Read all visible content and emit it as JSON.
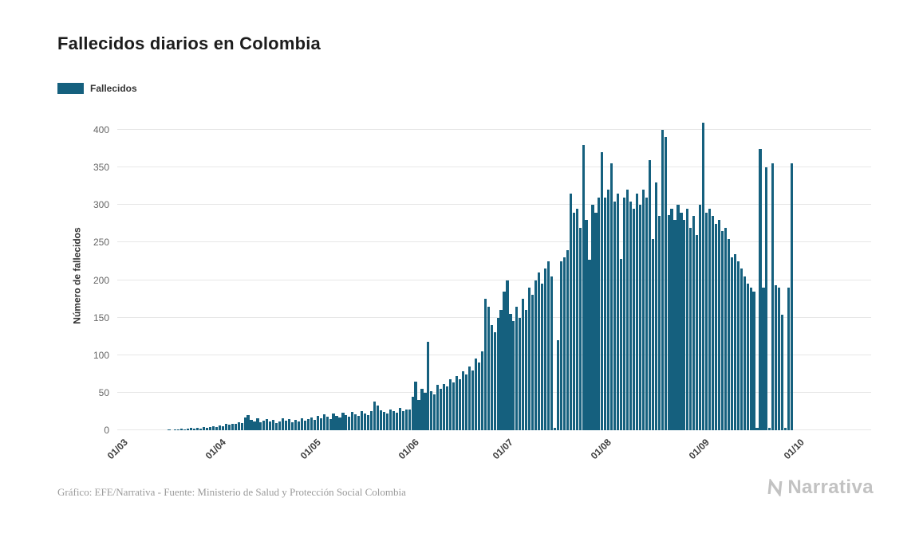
{
  "title": "Fallecidos diarios en Colombia",
  "legend": {
    "label": "Fallecidos",
    "color": "#15607e"
  },
  "footer": {
    "source": "Gráfico: EFE/Narrativa - Fuente: Ministerio de Salud y Protección Social Colombia"
  },
  "branding": {
    "logo_text": "Narrativa"
  },
  "chart_data": {
    "type": "bar",
    "title": "Fallecidos diarios en Colombia",
    "xlabel": "",
    "ylabel": "Número de fallecidos",
    "ylim": [
      0,
      410
    ],
    "yticks": [
      0,
      50,
      100,
      150,
      200,
      250,
      300,
      350,
      400
    ],
    "grid": true,
    "legend_position": "top-left",
    "xticks": [
      {
        "label": "01/03",
        "index": 0
      },
      {
        "label": "01/04",
        "index": 31
      },
      {
        "label": "01/05",
        "index": 61
      },
      {
        "label": "01/06",
        "index": 92
      },
      {
        "label": "01/07",
        "index": 122
      },
      {
        "label": "01/08",
        "index": 153
      },
      {
        "label": "01/09",
        "index": 184
      },
      {
        "label": "01/10",
        "index": 214
      }
    ],
    "series": [
      {
        "name": "Fallecidos",
        "color": "#15607e",
        "values": [
          0,
          0,
          0,
          0,
          0,
          0,
          0,
          0,
          0,
          0,
          0,
          0,
          0,
          0,
          0,
          0,
          1,
          0,
          1,
          1,
          2,
          1,
          2,
          3,
          2,
          3,
          2,
          4,
          3,
          4,
          5,
          4,
          6,
          5,
          8,
          7,
          9,
          8,
          11,
          10,
          17,
          20,
          14,
          12,
          16,
          11,
          13,
          15,
          12,
          14,
          10,
          12,
          16,
          13,
          15,
          11,
          14,
          12,
          16,
          13,
          15,
          17,
          14,
          19,
          16,
          21,
          18,
          15,
          22,
          19,
          17,
          23,
          20,
          18,
          24,
          21,
          19,
          25,
          22,
          20,
          26,
          38,
          33,
          27,
          24,
          22,
          28,
          25,
          23,
          30,
          26,
          28,
          28,
          45,
          65,
          40,
          55,
          50,
          118,
          52,
          48,
          60,
          55,
          62,
          58,
          68,
          64,
          72,
          68,
          78,
          74,
          85,
          80,
          95,
          90,
          105,
          175,
          165,
          140,
          130,
          150,
          160,
          185,
          200,
          155,
          145,
          165,
          150,
          175,
          160,
          190,
          180,
          200,
          210,
          195,
          215,
          225,
          205,
          3,
          120,
          225,
          230,
          240,
          315,
          290,
          295,
          270,
          380,
          280,
          227,
          300,
          290,
          310,
          370,
          310,
          320,
          355,
          305,
          315,
          228,
          310,
          320,
          305,
          295,
          315,
          300,
          320,
          310,
          360,
          255,
          330,
          285,
          400,
          390,
          287,
          295,
          280,
          300,
          290,
          280,
          295,
          270,
          285,
          260,
          300,
          410,
          290,
          295,
          285,
          275,
          280,
          265,
          270,
          255,
          230,
          235,
          225,
          215,
          205,
          195,
          190,
          185,
          3,
          375,
          190,
          350,
          3,
          355,
          193,
          190,
          154,
          3,
          190,
          355
        ]
      }
    ]
  }
}
